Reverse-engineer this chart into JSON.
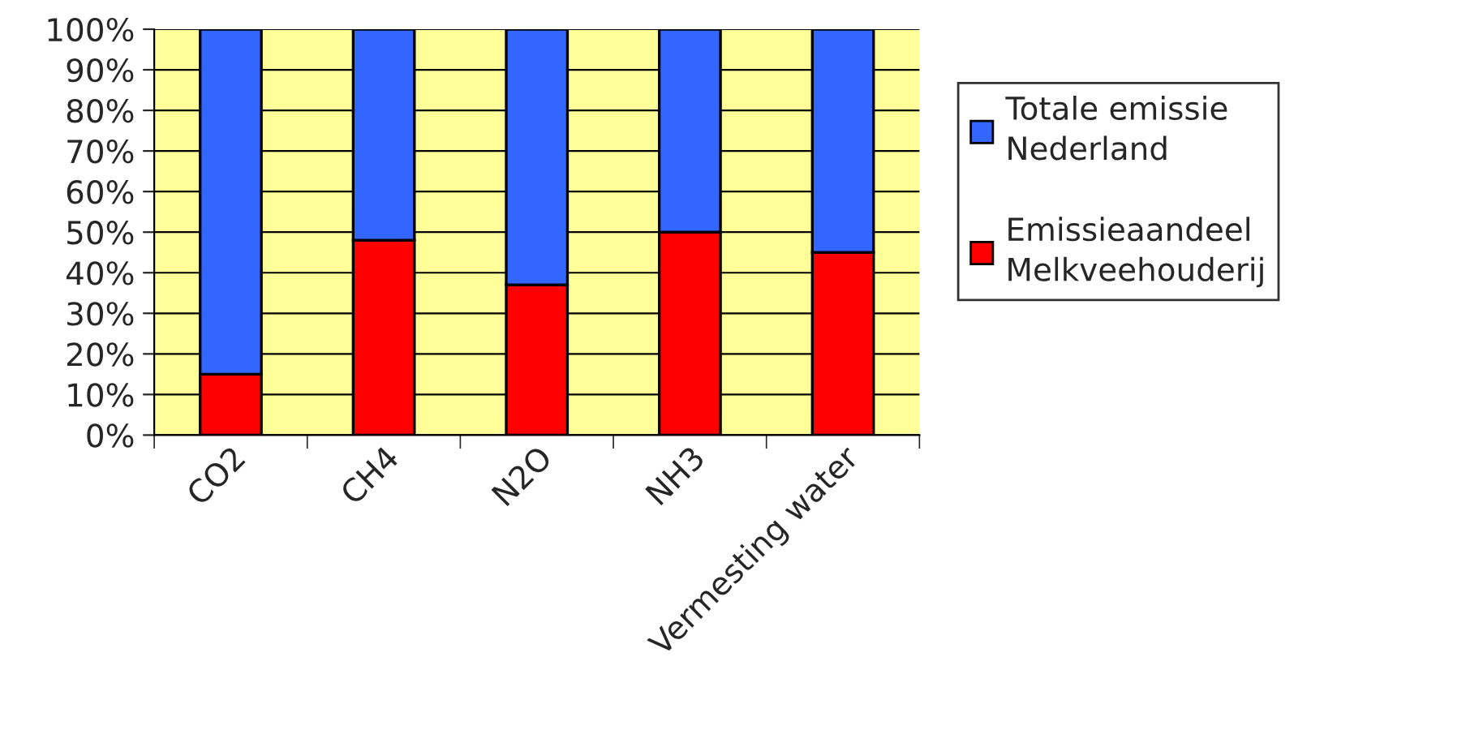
{
  "chart_data": {
    "type": "bar",
    "stacked": true,
    "categories": [
      "CO2",
      "CH4",
      "N2O",
      "NH3",
      "Vermesting water"
    ],
    "series": [
      {
        "name": "Emissieaandeel Melkveehouderij",
        "color": "#ff0000",
        "values": [
          15,
          48,
          37,
          50,
          45
        ]
      },
      {
        "name": "Totale emissie Nederland",
        "color": "#3366ff",
        "values": [
          85,
          52,
          63,
          50,
          55
        ]
      }
    ],
    "ylim": [
      0,
      100
    ],
    "yticks": [
      {
        "value": 0,
        "label": "0%"
      },
      {
        "value": 10,
        "label": "10%"
      },
      {
        "value": 20,
        "label": "20%"
      },
      {
        "value": 30,
        "label": "30%"
      },
      {
        "value": 40,
        "label": "40%"
      },
      {
        "value": 50,
        "label": "50%"
      },
      {
        "value": 60,
        "label": "60%"
      },
      {
        "value": 70,
        "label": "70%"
      },
      {
        "value": 80,
        "label": "80%"
      },
      {
        "value": 90,
        "label": "90%"
      },
      {
        "value": 100,
        "label": "100%"
      }
    ],
    "grid": "y",
    "legend": "right"
  }
}
